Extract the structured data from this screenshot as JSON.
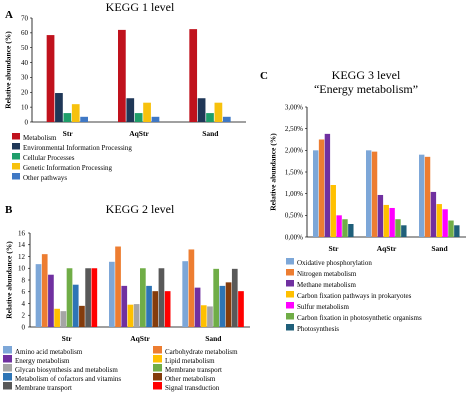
{
  "figure": {
    "panels": [
      {
        "letter": "A"
      },
      {
        "letter": "B"
      },
      {
        "letter": "C"
      }
    ]
  },
  "chart_data": [
    {
      "type": "bar",
      "title": "KEGG 1 level",
      "ylabel": "Relative abundance (%)",
      "ylim": [
        0,
        70
      ],
      "yticks": [
        0,
        10,
        20,
        30,
        40,
        50,
        60,
        70
      ],
      "categories": [
        "Str",
        "AqStr",
        "Sand"
      ],
      "grid": false,
      "legend": "bottom",
      "series": [
        {
          "name": "Metabolism",
          "color": "#c0121d",
          "values": [
            58.5,
            62,
            62.5
          ]
        },
        {
          "name": "Environmental Information Processing",
          "color": "#1f3757",
          "values": [
            19.5,
            16,
            16
          ]
        },
        {
          "name": "Cellular Processes",
          "color": "#1e9e6a",
          "values": [
            6,
            6,
            6
          ]
        },
        {
          "name": "Genetic Information Processing",
          "color": "#f7c10d",
          "values": [
            12,
            13,
            13
          ]
        },
        {
          "name": "Other pathways",
          "color": "#3f78c5",
          "values": [
            3.5,
            3.5,
            3.5
          ]
        }
      ]
    },
    {
      "type": "bar",
      "title": "KEGG 2 level",
      "ylabel": "Relative abundance (%)",
      "ylim": [
        0,
        16
      ],
      "yticks": [
        0,
        2,
        4,
        6,
        8,
        10,
        12,
        14,
        16
      ],
      "categories": [
        "Str",
        "AqStr",
        "Sand"
      ],
      "grid": false,
      "legend": "bottom",
      "series": [
        {
          "name": "Amino acid metabolism",
          "color": "#7da7d8",
          "values": [
            10.7,
            11.1,
            11.2
          ]
        },
        {
          "name": "Carbohydrate metabolism",
          "color": "#ed7d31",
          "values": [
            12.4,
            13.7,
            13.2
          ]
        },
        {
          "name": "Energy metabolism",
          "color": "#7030a0",
          "values": [
            8.9,
            7.0,
            6.7
          ]
        },
        {
          "name": "Lipid metabolism",
          "color": "#ffc000",
          "values": [
            3.1,
            3.8,
            3.7
          ]
        },
        {
          "name": "Glycan biosynthesis and metabolism",
          "color": "#a5a5a5",
          "values": [
            2.7,
            3.9,
            3.5
          ]
        },
        {
          "name": "Membrane transport",
          "color": "#70ad47",
          "values": [
            10.0,
            10.0,
            9.9
          ]
        },
        {
          "name": "Metabolism of cofactors and vitamins",
          "color": "#2e75b6",
          "values": [
            7.2,
            7.0,
            7.0
          ]
        },
        {
          "name": "Other metabolism",
          "color": "#843c0c",
          "values": [
            3.6,
            6.1,
            7.6
          ]
        },
        {
          "name": "Membrane transport",
          "color": "#595959",
          "values": [
            10.0,
            10.0,
            9.9
          ]
        },
        {
          "name": "Signal transduction",
          "color": "#ff0000",
          "values": [
            10.0,
            6.1,
            6.1
          ]
        }
      ]
    },
    {
      "type": "bar",
      "title": "KEGG 3 level",
      "subtitle": "“Energy metabolism”",
      "ylabel": "Relative abundance (%)",
      "ylim": [
        0,
        3
      ],
      "yticks": [
        "0,00%",
        "0,50%",
        "1,00%",
        "1,50%",
        "2,00%",
        "2,50%",
        "3,00%"
      ],
      "categories": [
        "Str",
        "AqStr",
        "Sand"
      ],
      "grid": false,
      "legend": "bottom",
      "series": [
        {
          "name": "Oxidative phosphorylation",
          "color": "#7da7d8",
          "values": [
            2.0,
            2.0,
            1.9
          ]
        },
        {
          "name": "Nitrogen metabolism",
          "color": "#ed7d31",
          "values": [
            2.25,
            1.97,
            1.85
          ]
        },
        {
          "name": "Methane metabolism",
          "color": "#7030a0",
          "values": [
            2.38,
            0.97,
            1.04
          ]
        },
        {
          "name": "Carbon fixation pathways in prokaryotes",
          "color": "#ffc000",
          "values": [
            1.2,
            0.74,
            0.76
          ]
        },
        {
          "name": "Sulfur metabolism",
          "color": "#ff00ff",
          "values": [
            0.5,
            0.67,
            0.64
          ]
        },
        {
          "name": "Carbon fixation in photosynthetic organisms",
          "color": "#70ad47",
          "values": [
            0.41,
            0.41,
            0.38
          ]
        },
        {
          "name": "Photosynthesis",
          "color": "#1f5f7a",
          "values": [
            0.3,
            0.27,
            0.27
          ]
        }
      ]
    }
  ]
}
